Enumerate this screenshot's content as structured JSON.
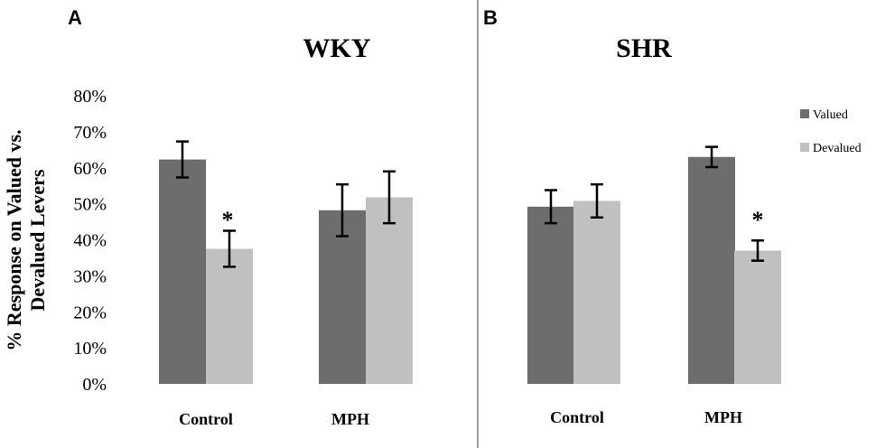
{
  "chart_data": {
    "type": "bar",
    "ylabel_lines": [
      "% Response on Valued vs.",
      "Devalued Levers"
    ],
    "ylim": [
      0,
      80
    ],
    "yticks": [
      "0%",
      "10%",
      "20%",
      "30%",
      "40%",
      "50%",
      "60%",
      "70%",
      "80%"
    ],
    "legend": {
      "position": "right",
      "entries": [
        {
          "name": "Valued",
          "color": "#6d6d6d"
        },
        {
          "name": "Devalued",
          "color": "#c0c0c0"
        }
      ]
    },
    "panels": [
      {
        "letter": "A",
        "title": "WKY",
        "categories": [
          "Control",
          "MPH"
        ],
        "series": [
          {
            "name": "Valued",
            "values": [
              62.3,
              48.2
            ],
            "errors": [
              5,
              7.2
            ]
          },
          {
            "name": "Devalued",
            "values": [
              37.5,
              51.8
            ],
            "errors": [
              5,
              7.2
            ]
          }
        ],
        "significance": [
          "*",
          ""
        ]
      },
      {
        "letter": "B",
        "title": "SHR",
        "categories": [
          "Control",
          "MPH"
        ],
        "series": [
          {
            "name": "Valued",
            "values": [
              49.2,
              63.0
            ],
            "errors": [
              4.6,
              2.8
            ]
          },
          {
            "name": "Devalued",
            "values": [
              50.8,
              37.0
            ],
            "errors": [
              4.6,
              2.8
            ]
          }
        ],
        "significance": [
          "",
          "*"
        ]
      }
    ]
  }
}
